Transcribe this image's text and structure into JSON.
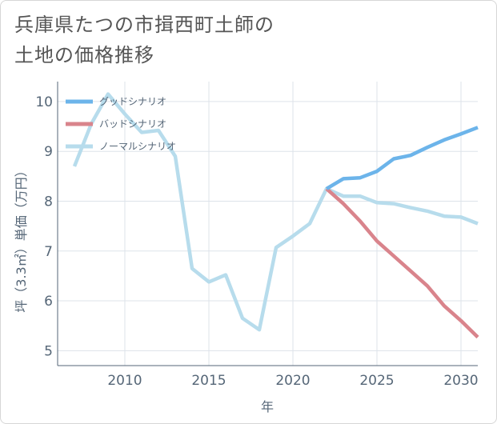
{
  "title": {
    "line1": "兵庫県たつの市揖西町土師の",
    "line2": "土地の価格推移"
  },
  "chart_data": {
    "type": "line",
    "title": "兵庫県たつの市揖西町土師の土地の価格推移",
    "xlabel": "年",
    "ylabel": "坪（3.3㎡）単価（万円）",
    "xlim": [
      2006,
      2031
    ],
    "ylim": [
      4.7,
      10.4
    ],
    "xticks": [
      2010,
      2015,
      2020,
      2025,
      2030
    ],
    "yticks": [
      5,
      6,
      7,
      8,
      9,
      10
    ],
    "grid": true,
    "legend_position": "top-left",
    "series": [
      {
        "name": "グッドシナリオ",
        "color": "#6cb4ea",
        "x": [
          2022,
          2023,
          2024,
          2025,
          2026,
          2027,
          2028,
          2029,
          2030,
          2031
        ],
        "y": [
          8.25,
          8.45,
          8.47,
          8.6,
          8.85,
          8.92,
          9.08,
          9.23,
          9.35,
          9.48
        ]
      },
      {
        "name": "バッドシナリオ",
        "color": "#d9848c",
        "x": [
          2022,
          2023,
          2024,
          2025,
          2026,
          2027,
          2028,
          2029,
          2030,
          2031
        ],
        "y": [
          8.25,
          7.95,
          7.6,
          7.2,
          6.9,
          6.6,
          6.3,
          5.9,
          5.6,
          5.27
        ]
      },
      {
        "name": "ノーマルシナリオ",
        "color": "#b7dcec",
        "x": [
          2007,
          2008,
          2009,
          2010,
          2011,
          2012,
          2013,
          2014,
          2015,
          2016,
          2017,
          2018,
          2019,
          2020,
          2021,
          2022,
          2023,
          2024,
          2025,
          2026,
          2027,
          2028,
          2029,
          2030,
          2031
        ],
        "y": [
          8.7,
          9.55,
          10.15,
          9.75,
          9.38,
          9.42,
          8.9,
          6.65,
          6.38,
          6.52,
          5.65,
          5.42,
          7.07,
          7.3,
          7.55,
          8.25,
          8.1,
          8.1,
          7.97,
          7.95,
          7.87,
          7.8,
          7.7,
          7.68,
          7.55
        ]
      }
    ]
  }
}
